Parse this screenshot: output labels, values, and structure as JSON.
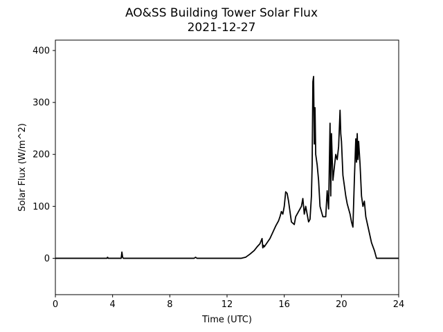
{
  "chart_data": {
    "type": "line",
    "title": "AO&SS Building Tower Solar Flux",
    "subtitle": "2021-12-27",
    "xlabel": "Time (UTC)",
    "ylabel": "Solar Flux (W/m^2)",
    "xlim": [
      0,
      24
    ],
    "ylim": [
      -70,
      420
    ],
    "xticks": [
      0,
      4,
      8,
      12,
      16,
      20,
      24
    ],
    "yticks": [
      0,
      100,
      200,
      300,
      400
    ],
    "grid": false,
    "legend": "none",
    "series": [
      {
        "color": "#000000",
        "x": [
          0,
          3.6,
          3.65,
          3.7,
          4.6,
          4.65,
          4.7,
          4.75,
          9.7,
          9.8,
          9.9,
          10.0,
          13.0,
          13.3,
          13.6,
          13.9,
          14.1,
          14.3,
          14.45,
          14.5,
          14.55,
          14.6,
          14.8,
          15.0,
          15.2,
          15.4,
          15.6,
          15.7,
          15.8,
          15.9,
          16.0,
          16.1,
          16.2,
          16.3,
          16.5,
          16.7,
          16.8,
          17.0,
          17.2,
          17.3,
          17.4,
          17.5,
          17.6,
          17.7,
          17.8,
          17.9,
          17.95,
          18.0,
          18.05,
          18.1,
          18.15,
          18.2,
          18.3,
          18.4,
          18.5,
          18.7,
          18.9,
          19.0,
          19.1,
          19.2,
          19.25,
          19.3,
          19.4,
          19.5,
          19.6,
          19.7,
          19.8,
          19.9,
          19.95,
          20.0,
          20.1,
          20.2,
          20.3,
          20.4,
          20.5,
          20.6,
          20.7,
          20.8,
          20.9,
          21.0,
          21.05,
          21.1,
          21.15,
          21.2,
          21.3,
          21.4,
          21.5,
          21.6,
          21.7,
          21.9,
          22.1,
          22.3,
          22.45,
          22.6,
          24
        ],
        "y": [
          0,
          0,
          2,
          0,
          0,
          12,
          2,
          0,
          0,
          2,
          0,
          0,
          0,
          2,
          8,
          15,
          22,
          28,
          38,
          20,
          25,
          22,
          30,
          38,
          50,
          62,
          72,
          80,
          90,
          85,
          100,
          128,
          125,
          110,
          70,
          65,
          80,
          90,
          100,
          115,
          85,
          100,
          85,
          70,
          75,
          120,
          180,
          340,
          350,
          220,
          290,
          200,
          180,
          150,
          100,
          80,
          80,
          130,
          95,
          260,
          120,
          240,
          150,
          175,
          200,
          190,
          215,
          285,
          240,
          225,
          160,
          140,
          120,
          105,
          95,
          85,
          70,
          60,
          150,
          230,
          185,
          240,
          190,
          225,
          180,
          120,
          100,
          110,
          80,
          55,
          30,
          15,
          0,
          0,
          0
        ]
      }
    ]
  }
}
